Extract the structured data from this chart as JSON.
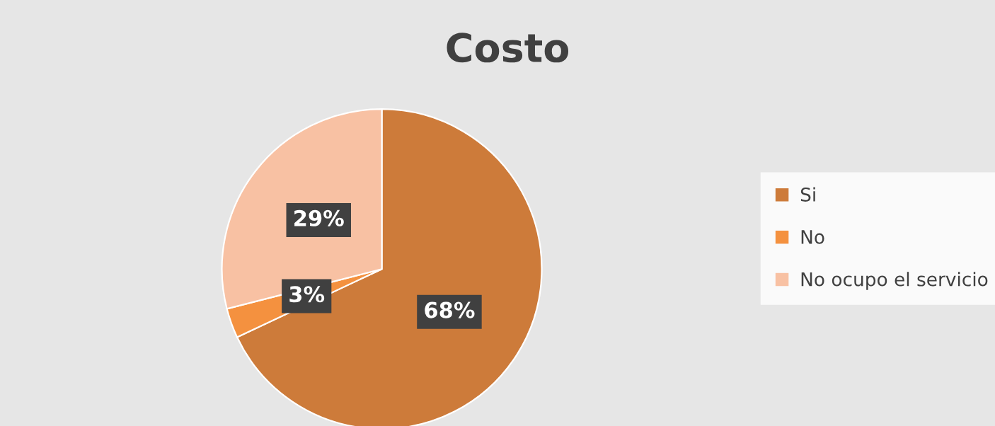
{
  "chart_data": {
    "type": "pie",
    "title": "Costo",
    "categories": [
      "Si",
      "No",
      "No ocupo el servicio"
    ],
    "values": [
      68,
      3,
      29
    ],
    "colors": [
      "#cd7b3a",
      "#f4913f",
      "#f8c1a3"
    ],
    "value_labels": [
      "68%",
      "3%",
      "29%"
    ],
    "legend": "right"
  }
}
